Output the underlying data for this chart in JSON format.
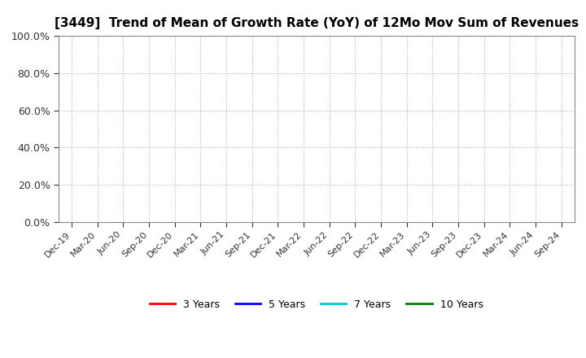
{
  "title": "[3449]  Trend of Mean of Growth Rate (YoY) of 12Mo Mov Sum of Revenues",
  "title_fontsize": 11,
  "yticks": [
    0.0,
    0.2,
    0.4,
    0.6,
    0.8,
    1.0
  ],
  "ylim": [
    0.0,
    1.0
  ],
  "xtick_labels": [
    "Dec-19",
    "Mar-20",
    "Jun-20",
    "Sep-20",
    "Dec-20",
    "Mar-21",
    "Jun-21",
    "Sep-21",
    "Dec-21",
    "Mar-22",
    "Jun-22",
    "Sep-22",
    "Dec-22",
    "Mar-23",
    "Jun-23",
    "Sep-23",
    "Dec-23",
    "Mar-24",
    "Jun-24",
    "Sep-24"
  ],
  "legend_entries": [
    "3 Years",
    "5 Years",
    "7 Years",
    "10 Years"
  ],
  "legend_colors": [
    "#ff0000",
    "#0000ff",
    "#00cccc",
    "#008000"
  ],
  "background_color": "#ffffff",
  "plot_bg_color": "#ffffff",
  "grid_color": "#b0b0b0",
  "xtick_fontsize": 8,
  "ytick_fontsize": 9,
  "legend_fontsize": 9
}
